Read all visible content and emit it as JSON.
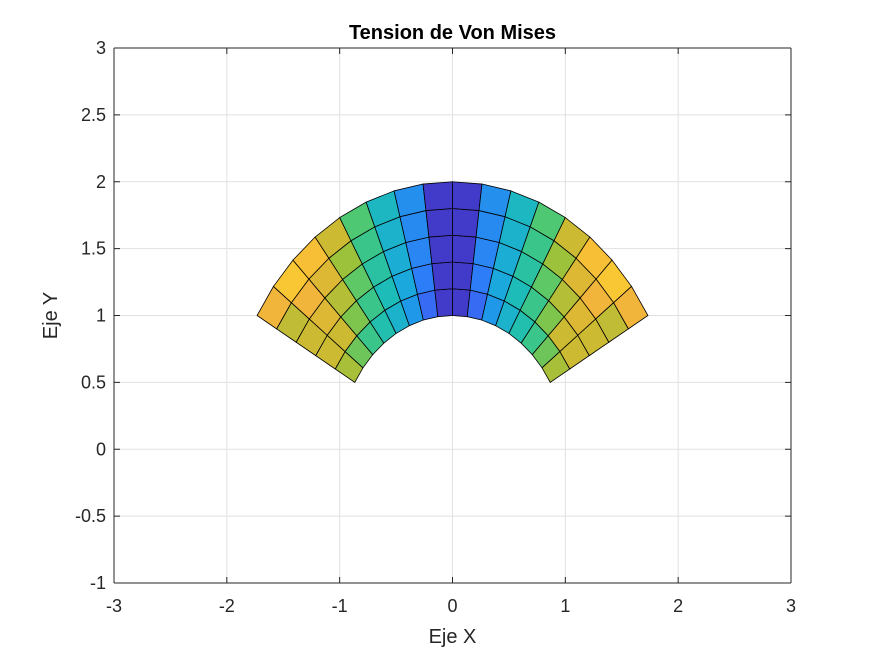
{
  "chart_data": {
    "type": "heatmap",
    "title": "Tension de Von Mises",
    "xlabel": "Eje X",
    "ylabel": "Eje Y",
    "xlim": [
      -3,
      3
    ],
    "ylim": [
      -1,
      3
    ],
    "xticks": [
      -3,
      -2,
      -1,
      0,
      1,
      2,
      3
    ],
    "xtick_labels": [
      "-3",
      "-2",
      "-1",
      "0",
      "1",
      "2",
      "3"
    ],
    "yticks": [
      -1,
      -0.5,
      0,
      0.5,
      1,
      1.5,
      2,
      2.5,
      3
    ],
    "ytick_labels": [
      "-1",
      "-0.5",
      "0",
      "0.5",
      "1",
      "1.5",
      "2",
      "2.5",
      "3"
    ],
    "grid": true,
    "colormap": "parula",
    "mesh": {
      "inner_radius": 1,
      "outer_radius": 2,
      "theta_start_deg": 30,
      "theta_end_deg": 150,
      "radial_divisions": 5,
      "angular_divisions": 16,
      "normalized_stress": [
        [
          0.68,
          0.74,
          0.74,
          0.72,
          0.84
        ],
        [
          0.6,
          0.74,
          0.78,
          0.84,
          0.9
        ],
        [
          0.52,
          0.62,
          0.7,
          0.78,
          0.88
        ],
        [
          0.46,
          0.52,
          0.58,
          0.66,
          0.74
        ],
        [
          0.4,
          0.44,
          0.48,
          0.52,
          0.56
        ],
        [
          0.32,
          0.36,
          0.38,
          0.4,
          0.42
        ],
        [
          0.22,
          0.26,
          0.28,
          0.29,
          0.3
        ],
        [
          0.08,
          0.08,
          0.08,
          0.08,
          0.08
        ],
        [
          0.08,
          0.08,
          0.08,
          0.08,
          0.08
        ],
        [
          0.22,
          0.26,
          0.28,
          0.29,
          0.3
        ],
        [
          0.32,
          0.36,
          0.38,
          0.4,
          0.42
        ],
        [
          0.4,
          0.44,
          0.48,
          0.52,
          0.56
        ],
        [
          0.46,
          0.52,
          0.58,
          0.66,
          0.74
        ],
        [
          0.52,
          0.62,
          0.7,
          0.78,
          0.88
        ],
        [
          0.6,
          0.74,
          0.78,
          0.84,
          0.9
        ],
        [
          0.68,
          0.74,
          0.74,
          0.72,
          0.84
        ]
      ]
    }
  }
}
